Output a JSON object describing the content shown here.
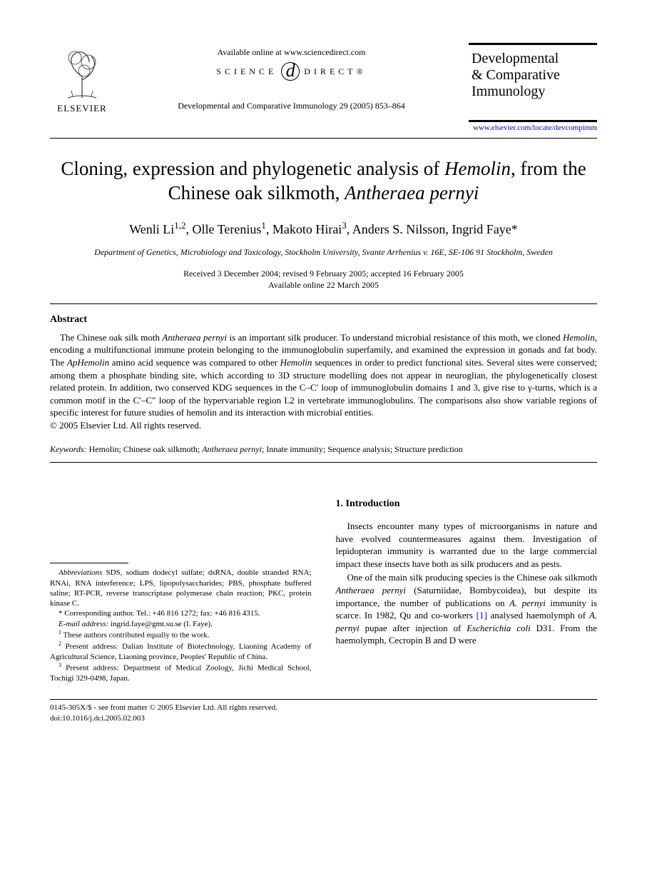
{
  "header": {
    "publisher_name": "ELSEVIER",
    "available_online": "Available online at www.sciencedirect.com",
    "science_direct_left": "SCIENCE",
    "science_direct_right": "DIRECT®",
    "journal_ref": "Developmental and Comparative Immunology 29 (2005) 853–864",
    "journal_title_1": "Developmental",
    "journal_title_2": "& Comparative",
    "journal_title_3": "Immunology",
    "journal_link": "www.elsevier.com/locate/devcompimm"
  },
  "article": {
    "title_html": "Cloning, expression and phylogenetic analysis of <span class=\"italic\">Hemolin</span>, from the Chinese oak silkmoth, <span class=\"italic\">Antheraea pernyi</span>",
    "authors_html": "Wenli Li<sup>1,2</sup>, Olle Terenius<sup>1</sup>, Makoto Hirai<sup>3</sup>, Anders S. Nilsson, Ingrid Faye*",
    "affiliation": "Department of Genetics, Microbiology and Toxicology, Stockholm University, Svante Arrhenius v. 16E, SE-106 91 Stockholm, Sweden",
    "dates_line1": "Received 3 December 2004; revised 9 February 2005; accepted 16 February 2005",
    "dates_line2": "Available online 22 March 2005"
  },
  "abstract": {
    "heading": "Abstract",
    "body_html": "The Chinese oak silk moth <span class=\"italic\">Antheraea pernyi</span> is an important silk producer. To understand microbial resistance of this moth, we cloned <span class=\"italic\">Hemolin</span>, encoding a multifunctional immune protein belonging to the immunoglobulin superfamily, and examined the expression in gonads and fat body. The <span class=\"italic\">ApHemolin</span> amino acid sequence was compared to other <span class=\"italic\">Hemolin</span> sequences in order to predict functional sites. Several sites were conserved; among them a phosphate binding site, which according to 3D structure modelling does not appear in neuroglian, the phylogenetically closest related protein. In addition, two conserved KDG sequences in the C–C′ loop of immunoglobulin domains 1 and 3, give rise to γ-turns, which is a common motif in the C′–C″ loop of the hypervariable region L2 in vertebrate immunoglobulins. The comparisons also show variable regions of specific interest for future studies of hemolin and its interaction with microbial entities.",
    "copyright": "© 2005 Elsevier Ltd. All rights reserved."
  },
  "keywords": {
    "label": "Keywords:",
    "text_html": " Hemolin; Chinese oak silkmoth; <span class=\"italic\">Antheraea pernyi</span>; Innate immunity; Sequence analysis; Structure prediction"
  },
  "footnotes": {
    "abbrev_html": "<span class=\"italic\">Abbreviations</span> SDS, sodium dodecyl sulfate; dsRNA, double stranded RNA; RNAi, RNA interference; LPS, lipopolysaccharides; PBS, phosphate buffered saline; RT-PCR, reverse transcriptase polymerase chain reaction; PKC, protein kinase C.",
    "corresponding": "* Corresponding author. Tel.: +46 816 1272; fax: +46 816 4315.",
    "email_html": "<span class=\"italic\">E-mail address:</span> ingrid.faye@gmt.su.se (I. Faye).",
    "fn1_html": "<sup>1</sup> These authors contributed equally to the work.",
    "fn2_html": "<sup>2</sup> Present address: Dalian Institute of Biotechnology, Liaoning Academy of Agricultural Science, Liaoning province, Peoples' Republic of China.",
    "fn3_html": "<sup>3</sup> Present address: Department of Medical Zoology, Jichi Medical School, Tochigi 329-0498, Japan."
  },
  "intro": {
    "heading": "1. Introduction",
    "p1": "Insects encounter many types of microorganisms in nature and have evolved countermeasures against them. Investigation of lepidopteran immunity is warranted due to the large commercial impact these insects have both as silk producers and as pests.",
    "p2_html": "One of the main silk producing species is the Chinese oak silkmoth <span class=\"italic\">Antheraea pernyi</span> (Saturniidae, Bombycoidea), but despite its importance, the number of publications on <span class=\"italic\">A. pernyi</span> immunity is scarce. In 1982, Qu and co-workers <span class=\"ref-link\">[1]</span> analysed haemolymph of <span class=\"italic\">A. pernyi</span> pupae after injection of <span class=\"italic\">Escherichia coli</span> D31. From the haemolymph, Cecropin B and D were"
  },
  "footer": {
    "line1": "0145-305X/$ - see front matter © 2005 Elsevier Ltd. All rights reserved.",
    "line2": "doi:10.1016/j.dci.2005.02.003"
  },
  "colors": {
    "text": "#000000",
    "link": "#0000cc",
    "background": "#ffffff"
  }
}
